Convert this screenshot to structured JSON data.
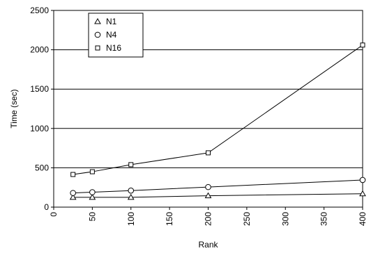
{
  "chart_data": {
    "type": "line",
    "xlabel": "Rank",
    "ylabel": "Time (sec)",
    "x": [
      25,
      50,
      100,
      200,
      400
    ],
    "xlim": [
      0,
      400
    ],
    "ylim": [
      0,
      2500
    ],
    "xticks": [
      "0",
      "50",
      "100",
      "150",
      "200",
      "250",
      "300",
      "350",
      "400"
    ],
    "yticks": [
      "0",
      "500",
      "1000",
      "1500",
      "2000",
      "2500"
    ],
    "grid": "horizontal",
    "legend_position": "top-left",
    "series": [
      {
        "name": "N1",
        "marker": "triangle",
        "values": [
          125,
          125,
          125,
          145,
          170
        ]
      },
      {
        "name": "N4",
        "marker": "circle",
        "values": [
          180,
          190,
          210,
          255,
          345
        ]
      },
      {
        "name": "N16",
        "marker": "square",
        "values": [
          415,
          450,
          540,
          690,
          2060
        ]
      }
    ]
  }
}
